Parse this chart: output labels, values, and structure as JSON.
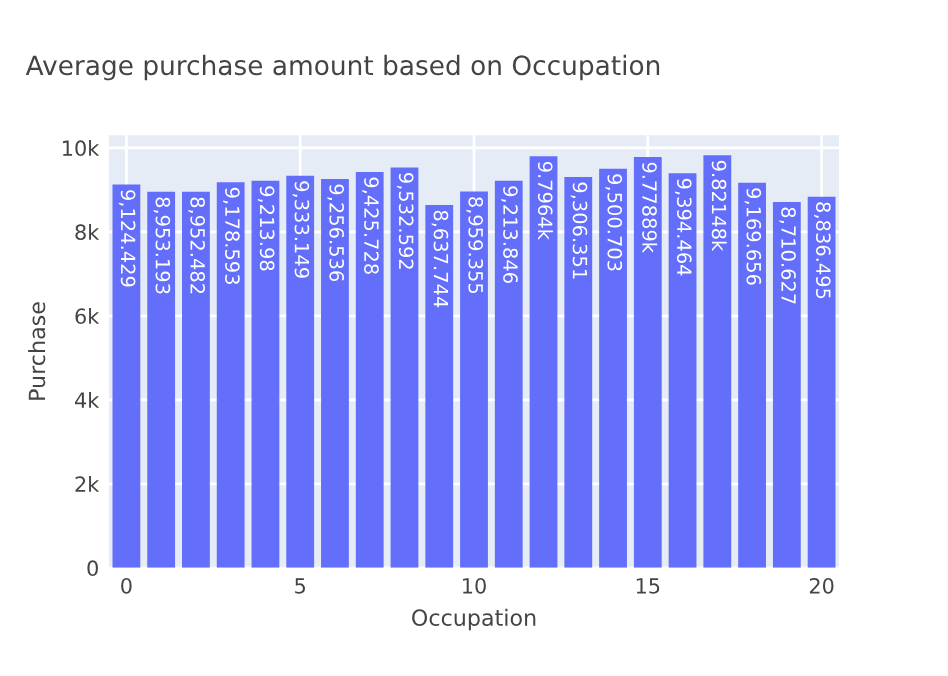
{
  "chart_data": {
    "type": "bar",
    "title": "Average purchase amount based on Occupation",
    "xlabel": "Occupation",
    "ylabel": "Purchase",
    "x": [
      0,
      1,
      2,
      3,
      4,
      5,
      6,
      7,
      8,
      9,
      10,
      11,
      12,
      13,
      14,
      15,
      16,
      17,
      18,
      19,
      20
    ],
    "values": [
      9124.429,
      8953.193,
      8952.482,
      9178.593,
      9213.98,
      9333.149,
      9256.536,
      9425.728,
      9532.592,
      8637.744,
      8959.355,
      9213.846,
      9796.4,
      9306.351,
      9500.703,
      9778.89,
      9394.464,
      9821.48,
      9169.656,
      8710.627,
      8836.495
    ],
    "value_labels": [
      "9,124.429",
      "8,953.193",
      "8,952.482",
      "9,178.593",
      "9,213.98",
      "9,333.149",
      "9,256.536",
      "9,425.728",
      "9,532.592",
      "8,637.744",
      "8,959.355",
      "9,213.846",
      "9.7964k",
      "9,306.351",
      "9,500.703",
      "9.77889k",
      "9,394.464",
      "9.82148k",
      "9,169.656",
      "8,710.627",
      "8,836.495"
    ],
    "color": "#636efa",
    "xlim": [
      -0.5,
      20.5
    ],
    "xticks": [
      0,
      5,
      10,
      15,
      20
    ],
    "ylim": [
      0,
      10300
    ],
    "yticks": [
      {
        "value": 0,
        "label": "0"
      },
      {
        "value": 2000,
        "label": "2k"
      },
      {
        "value": 4000,
        "label": "4k"
      },
      {
        "value": 6000,
        "label": "6k"
      },
      {
        "value": 8000,
        "label": "8k"
      },
      {
        "value": 10000,
        "label": "10k"
      }
    ],
    "grid": true
  }
}
